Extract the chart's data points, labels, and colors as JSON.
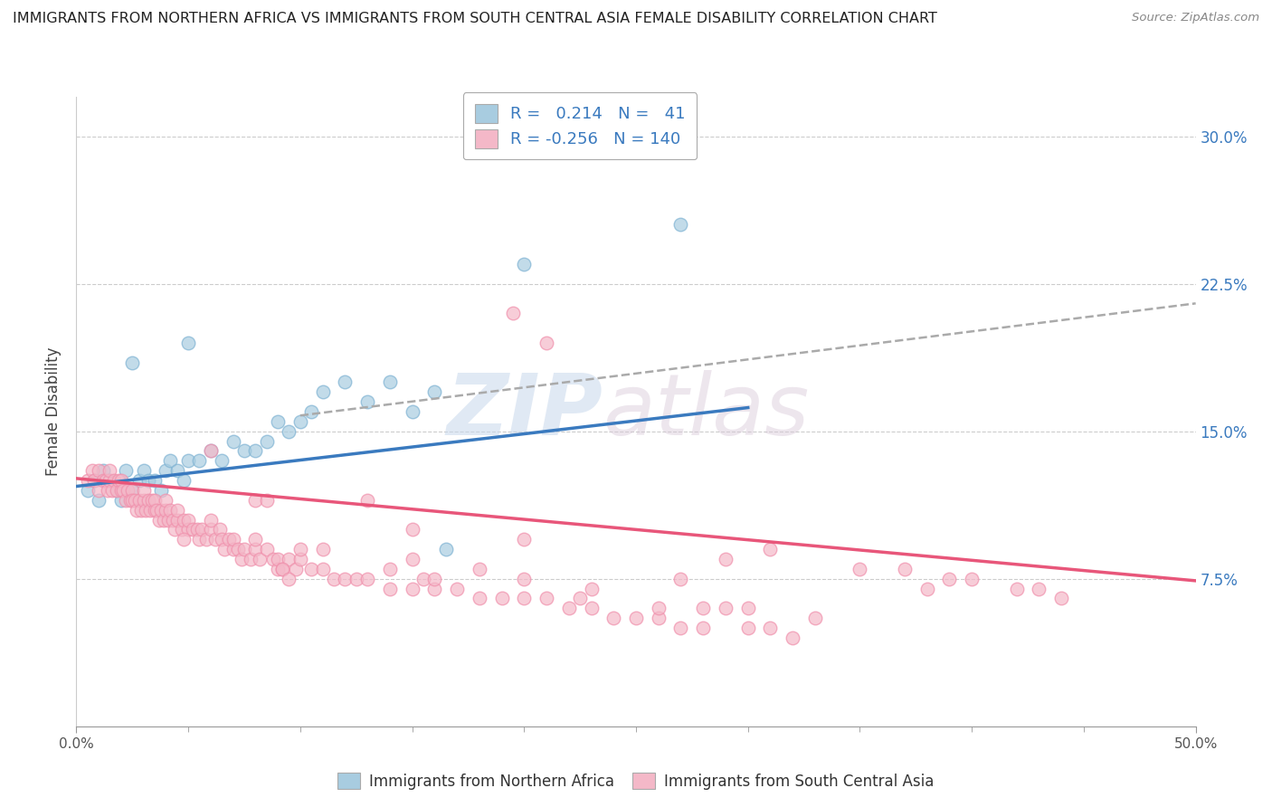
{
  "title": "IMMIGRANTS FROM NORTHERN AFRICA VS IMMIGRANTS FROM SOUTH CENTRAL ASIA FEMALE DISABILITY CORRELATION CHART",
  "source": "Source: ZipAtlas.com",
  "xlabel_blue": "Immigrants from Northern Africa",
  "xlabel_pink": "Immigrants from South Central Asia",
  "ylabel": "Female Disability",
  "blue_R": 0.214,
  "blue_N": 41,
  "pink_R": -0.256,
  "pink_N": 140,
  "xlim": [
    0.0,
    0.5
  ],
  "ylim": [
    0.0,
    0.32
  ],
  "yticks": [
    0.075,
    0.15,
    0.225,
    0.3
  ],
  "ytick_labels": [
    "7.5%",
    "15.0%",
    "22.5%",
    "30.0%"
  ],
  "xtick_left_label": "0.0%",
  "xtick_right_label": "50.0%",
  "blue_color": "#a8cce0",
  "pink_color": "#f4b8c8",
  "blue_edge_color": "#7fb3d3",
  "pink_edge_color": "#f090ac",
  "blue_line_color": "#3a7abf",
  "pink_line_color": "#e8567a",
  "gray_dash_color": "#aaaaaa",
  "background_color": "#ffffff",
  "label_color": "#3a7abf",
  "title_fontsize": 11.5,
  "blue_scatter_x": [
    0.005,
    0.008,
    0.01,
    0.012,
    0.015,
    0.018,
    0.02,
    0.022,
    0.025,
    0.028,
    0.03,
    0.032,
    0.035,
    0.038,
    0.04,
    0.042,
    0.045,
    0.048,
    0.05,
    0.055,
    0.06,
    0.065,
    0.07,
    0.075,
    0.08,
    0.085,
    0.09,
    0.095,
    0.1,
    0.105,
    0.11,
    0.12,
    0.13,
    0.14,
    0.15,
    0.16,
    0.165,
    0.025,
    0.05,
    0.27,
    0.2
  ],
  "blue_scatter_y": [
    0.12,
    0.125,
    0.115,
    0.13,
    0.125,
    0.12,
    0.115,
    0.13,
    0.12,
    0.125,
    0.13,
    0.125,
    0.125,
    0.12,
    0.13,
    0.135,
    0.13,
    0.125,
    0.135,
    0.135,
    0.14,
    0.135,
    0.145,
    0.14,
    0.14,
    0.145,
    0.155,
    0.15,
    0.155,
    0.16,
    0.17,
    0.175,
    0.165,
    0.175,
    0.16,
    0.17,
    0.09,
    0.185,
    0.195,
    0.255,
    0.235
  ],
  "pink_scatter_x": [
    0.005,
    0.007,
    0.008,
    0.01,
    0.01,
    0.012,
    0.013,
    0.014,
    0.015,
    0.015,
    0.016,
    0.017,
    0.018,
    0.019,
    0.02,
    0.02,
    0.021,
    0.022,
    0.023,
    0.024,
    0.025,
    0.025,
    0.026,
    0.027,
    0.028,
    0.029,
    0.03,
    0.03,
    0.031,
    0.032,
    0.033,
    0.034,
    0.035,
    0.035,
    0.036,
    0.037,
    0.038,
    0.039,
    0.04,
    0.04,
    0.041,
    0.042,
    0.043,
    0.044,
    0.045,
    0.045,
    0.047,
    0.048,
    0.05,
    0.05,
    0.052,
    0.054,
    0.055,
    0.056,
    0.058,
    0.06,
    0.06,
    0.062,
    0.064,
    0.065,
    0.066,
    0.068,
    0.07,
    0.07,
    0.072,
    0.074,
    0.075,
    0.078,
    0.08,
    0.08,
    0.082,
    0.085,
    0.088,
    0.09,
    0.09,
    0.092,
    0.095,
    0.098,
    0.1,
    0.1,
    0.105,
    0.11,
    0.115,
    0.12,
    0.125,
    0.13,
    0.14,
    0.15,
    0.155,
    0.16,
    0.17,
    0.18,
    0.19,
    0.2,
    0.21,
    0.22,
    0.23,
    0.24,
    0.25,
    0.26,
    0.27,
    0.28,
    0.3,
    0.31,
    0.32,
    0.13,
    0.15,
    0.2,
    0.27,
    0.29,
    0.31,
    0.35,
    0.37,
    0.38,
    0.39,
    0.4,
    0.42,
    0.43,
    0.44,
    0.28,
    0.195,
    0.21,
    0.06,
    0.08,
    0.085,
    0.092,
    0.095,
    0.048,
    0.11,
    0.14,
    0.15,
    0.16,
    0.18,
    0.2,
    0.225,
    0.23,
    0.26,
    0.29,
    0.3,
    0.33
  ],
  "pink_scatter_y": [
    0.125,
    0.13,
    0.125,
    0.12,
    0.13,
    0.125,
    0.125,
    0.12,
    0.125,
    0.13,
    0.12,
    0.125,
    0.12,
    0.125,
    0.12,
    0.125,
    0.12,
    0.115,
    0.12,
    0.115,
    0.12,
    0.115,
    0.115,
    0.11,
    0.115,
    0.11,
    0.115,
    0.12,
    0.11,
    0.115,
    0.11,
    0.115,
    0.11,
    0.115,
    0.11,
    0.105,
    0.11,
    0.105,
    0.11,
    0.115,
    0.105,
    0.11,
    0.105,
    0.1,
    0.105,
    0.11,
    0.1,
    0.105,
    0.1,
    0.105,
    0.1,
    0.1,
    0.095,
    0.1,
    0.095,
    0.1,
    0.105,
    0.095,
    0.1,
    0.095,
    0.09,
    0.095,
    0.09,
    0.095,
    0.09,
    0.085,
    0.09,
    0.085,
    0.09,
    0.095,
    0.085,
    0.09,
    0.085,
    0.08,
    0.085,
    0.08,
    0.085,
    0.08,
    0.085,
    0.09,
    0.08,
    0.08,
    0.075,
    0.075,
    0.075,
    0.075,
    0.07,
    0.07,
    0.075,
    0.07,
    0.07,
    0.065,
    0.065,
    0.065,
    0.065,
    0.06,
    0.06,
    0.055,
    0.055,
    0.055,
    0.05,
    0.05,
    0.05,
    0.05,
    0.045,
    0.115,
    0.1,
    0.095,
    0.075,
    0.085,
    0.09,
    0.08,
    0.08,
    0.07,
    0.075,
    0.075,
    0.07,
    0.07,
    0.065,
    0.06,
    0.21,
    0.195,
    0.14,
    0.115,
    0.115,
    0.08,
    0.075,
    0.095,
    0.09,
    0.08,
    0.085,
    0.075,
    0.08,
    0.075,
    0.065,
    0.07,
    0.06,
    0.06,
    0.06,
    0.055
  ],
  "blue_line_x": [
    0.0,
    0.3
  ],
  "blue_line_y": [
    0.122,
    0.162
  ],
  "gray_line_x": [
    0.1,
    0.5
  ],
  "gray_line_y": [
    0.158,
    0.215
  ],
  "pink_line_x": [
    0.0,
    0.5
  ],
  "pink_line_y": [
    0.126,
    0.074
  ]
}
